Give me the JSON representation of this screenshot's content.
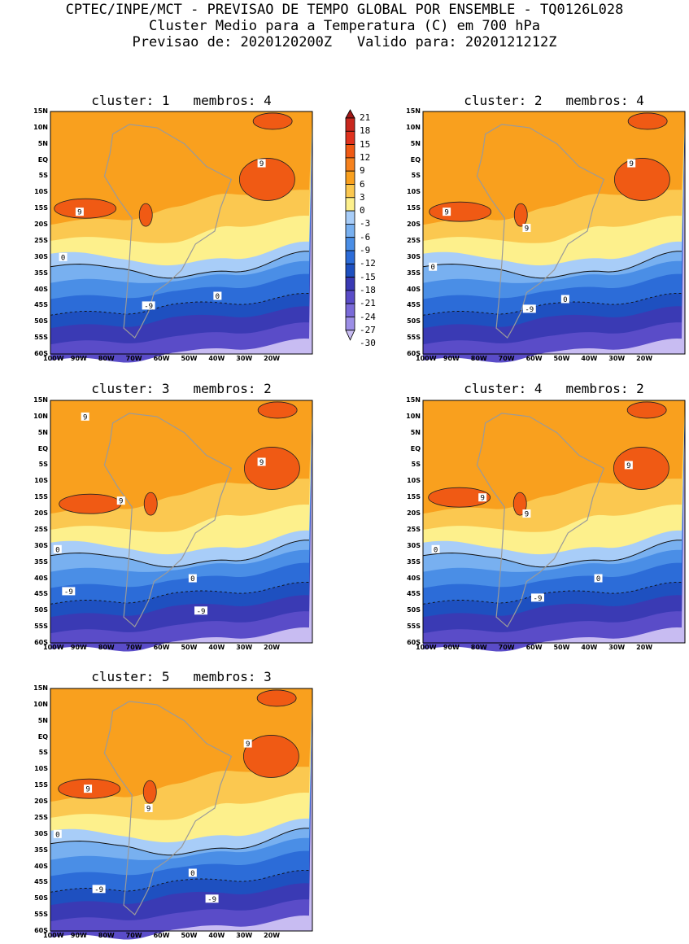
{
  "header": {
    "line1": "CPTEC/INPE/MCT - PREVISAO DE TEMPO GLOBAL POR ENSEMBLE - TQ0126L028",
    "line2": "Cluster Medio para a Temperatura (C) em 700 hPa",
    "line3": "Previsao de: 2020120200Z   Valido para: 2020121212Z"
  },
  "lat_ticks": [
    "15N",
    "10N",
    "5N",
    "EQ",
    "5S",
    "10S",
    "15S",
    "20S",
    "25S",
    "30S",
    "35S",
    "40S",
    "45S",
    "50S",
    "55S",
    "60S"
  ],
  "lon_ticks": [
    "100W",
    "90W",
    "80W",
    "70W",
    "60W",
    "50W",
    "40W",
    "30W",
    "20W"
  ],
  "colorbar": {
    "labels": [
      "21",
      "18",
      "15",
      "12",
      "9",
      "6",
      "3",
      "0",
      "-3",
      "-6",
      "-9",
      "-12",
      "-15",
      "-18",
      "-21",
      "-24",
      "-27",
      "-30"
    ],
    "colors": [
      "#a01818",
      "#c8281e",
      "#e0321e",
      "#f05a14",
      "#f6821e",
      "#f9a01e",
      "#fbc850",
      "#fdf08c",
      "#a8cdf8",
      "#78b0f0",
      "#4a8ee6",
      "#2c6cd8",
      "#1e50c0",
      "#3a3ab4",
      "#5a4cc8",
      "#7a6ad8",
      "#9c8ee6",
      "#c8bcf2"
    ]
  },
  "panels": [
    {
      "title": "cluster: 1   membros: 4",
      "labels": [
        {
          "text": "9",
          "lat": -16,
          "lon": -90
        },
        {
          "text": "9",
          "lat": -1,
          "lon": -24
        },
        {
          "text": "0",
          "lat": -30,
          "lon": -96
        },
        {
          "text": "0",
          "lat": -42,
          "lon": -40
        },
        {
          "text": "-9",
          "lat": -45,
          "lon": -65
        }
      ]
    },
    {
      "title": "cluster: 2   membros: 4",
      "labels": [
        {
          "text": "9",
          "lat": -16,
          "lon": -92
        },
        {
          "text": "9",
          "lat": -21,
          "lon": -63
        },
        {
          "text": "9",
          "lat": -1,
          "lon": -25
        },
        {
          "text": "0",
          "lat": -33,
          "lon": -97
        },
        {
          "text": "0",
          "lat": -43,
          "lon": -49
        },
        {
          "text": "-9",
          "lat": -46,
          "lon": -62
        }
      ]
    },
    {
      "title": "cluster: 3   membros: 2",
      "labels": [
        {
          "text": "9",
          "lat": 10,
          "lon": -88
        },
        {
          "text": "9",
          "lat": -16,
          "lon": -75
        },
        {
          "text": "9",
          "lat": -4,
          "lon": -24
        },
        {
          "text": "0",
          "lat": -31,
          "lon": -98
        },
        {
          "text": "0",
          "lat": -40,
          "lon": -49
        },
        {
          "text": "-9",
          "lat": -44,
          "lon": -94
        },
        {
          "text": "-9",
          "lat": -50,
          "lon": -46
        }
      ]
    },
    {
      "title": "cluster: 4   membros: 2",
      "labels": [
        {
          "text": "9",
          "lat": -15,
          "lon": -79
        },
        {
          "text": "9",
          "lat": -20,
          "lon": -63
        },
        {
          "text": "9",
          "lat": -5,
          "lon": -26
        },
        {
          "text": "0",
          "lat": -31,
          "lon": -96
        },
        {
          "text": "0",
          "lat": -40,
          "lon": -37
        },
        {
          "text": "-9",
          "lat": -46,
          "lon": -59
        }
      ]
    },
    {
      "title": "cluster: 5   membros: 3",
      "labels": [
        {
          "text": "9",
          "lat": -16,
          "lon": -87
        },
        {
          "text": "9",
          "lat": -22,
          "lon": -65
        },
        {
          "text": "9",
          "lat": -2,
          "lon": -29
        },
        {
          "text": "0",
          "lat": -30,
          "lon": -98
        },
        {
          "text": "0",
          "lat": -42,
          "lon": -49
        },
        {
          "text": "-9",
          "lat": -47,
          "lon": -83
        },
        {
          "text": "-9",
          "lat": -50,
          "lon": -42
        }
      ]
    }
  ]
}
